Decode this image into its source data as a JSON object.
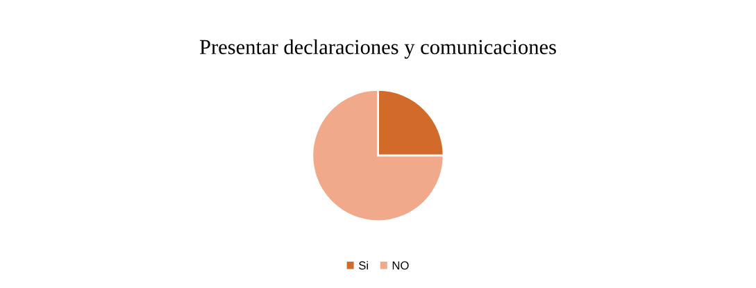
{
  "chart_data": {
    "type": "pie",
    "title": "Presentar declaraciones y comunicaciones",
    "categories": [
      "Si",
      "NO"
    ],
    "values": [
      25,
      75
    ],
    "colors": [
      "#d26b2a",
      "#f0a98a"
    ],
    "legend": "bottom"
  }
}
